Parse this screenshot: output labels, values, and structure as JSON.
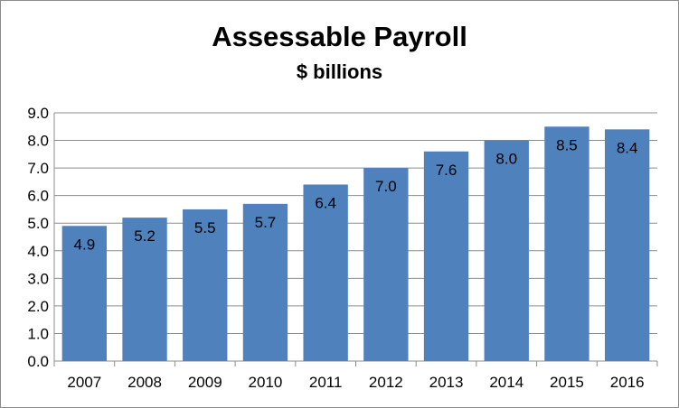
{
  "chart_data": {
    "type": "bar",
    "title": "Assessable Payroll",
    "subtitle": "$ billions",
    "xlabel": "",
    "ylabel": "",
    "categories": [
      "2007",
      "2008",
      "2009",
      "2010",
      "2011",
      "2012",
      "2013",
      "2014",
      "2015",
      "2016"
    ],
    "values": [
      4.9,
      5.2,
      5.5,
      5.7,
      6.4,
      7.0,
      7.6,
      8.0,
      8.5,
      8.4
    ],
    "data_labels": [
      "4.9",
      "5.2",
      "5.5",
      "5.7",
      "6.4",
      "7.0",
      "7.6",
      "8.0",
      "8.5",
      "8.4"
    ],
    "ylim": [
      0,
      9
    ],
    "yticks": [
      "0.0",
      "1.0",
      "2.0",
      "3.0",
      "4.0",
      "5.0",
      "6.0",
      "7.0",
      "8.0",
      "9.0"
    ],
    "grid": true,
    "legend": "none",
    "bar_color": "#4f81bd"
  }
}
